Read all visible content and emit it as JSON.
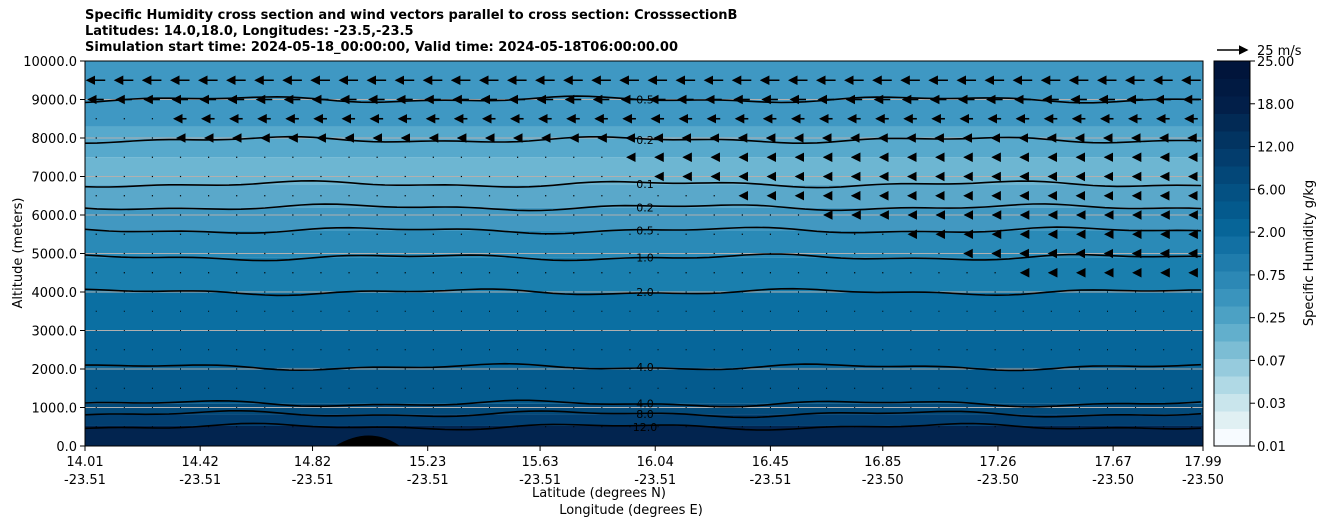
{
  "title": {
    "line1": "Specific Humidity cross section and wind vectors parallel to cross section: CrosssectionB",
    "line2": "Latitudes: 14.0,18.0, Longitudes: -23.5,-23.5",
    "line3": "Simulation start time: 2024-05-18_00:00:00, Valid time: 2024-05-18T06:00:00.00"
  },
  "chart_data": {
    "type": "heatmap",
    "ylabel": "Altitude (meters)",
    "xlabel_lat": "Latitude (degrees N)",
    "xlabel_lon": "Longitude (degrees E)",
    "ylim": [
      0,
      10000
    ],
    "yticks": [
      "0.0",
      "1000.0",
      "2000.0",
      "3000.0",
      "4000.0",
      "5000.0",
      "6000.0",
      "7000.0",
      "8000.0",
      "9000.0",
      "10000.0"
    ],
    "xlim_lat": [
      14.01,
      17.99
    ],
    "xticks_lat": [
      "14.01",
      "14.42",
      "14.82",
      "15.23",
      "15.63",
      "16.04",
      "16.45",
      "16.85",
      "17.26",
      "17.67",
      "17.99"
    ],
    "xticks_lat_values": [
      14.01,
      14.42,
      14.82,
      15.23,
      15.63,
      16.04,
      16.45,
      16.85,
      17.26,
      17.67,
      17.99
    ],
    "xticks_lon": [
      "-23.51",
      "-23.51",
      "-23.51",
      "-23.51",
      "-23.51",
      "-23.51",
      "-23.51",
      "-23.50",
      "-23.50",
      "-23.50",
      "-23.50"
    ],
    "grid": "horizontal",
    "colorbar": {
      "label": "Specific Humidity g/kg",
      "levels": [
        "0.01",
        "0.03",
        "0.07",
        "0.25",
        "0.75",
        "2.00",
        "6.00",
        "12.00",
        "18.00",
        "25.00"
      ],
      "colors": [
        "#f7fbff",
        "#e0f0f3",
        "#c9e5ec",
        "#b0d9e5",
        "#96cbdd",
        "#7cbdd4",
        "#62afcc",
        "#4ca1c4",
        "#3a94bd",
        "#2c88b5",
        "#1f7cac",
        "#1270a3",
        "#076598",
        "#045a8d",
        "#045183",
        "#034778",
        "#033d6d",
        "#023461",
        "#022a55",
        "#021f49",
        "#011a42",
        "#01153b"
      ]
    },
    "wind_key": {
      "label": "25 m/s",
      "speed": 25
    },
    "contours": [
      {
        "label": "12.0",
        "altitude": 500
      },
      {
        "label": "8.0",
        "altitude": 830
      },
      {
        "label": "4.0",
        "altitude": 1100
      },
      {
        "label": "4.0",
        "altitude": 2050
      },
      {
        "label": "2.0",
        "altitude": 4000
      },
      {
        "label": "1.0",
        "altitude": 4900
      },
      {
        "label": "0.5",
        "altitude": 5600
      },
      {
        "label": "0.2",
        "altitude": 6200
      },
      {
        "label": "0.1",
        "altitude": 6800
      },
      {
        "label": "0.2",
        "altitude": 7950
      },
      {
        "label": "0.5",
        "altitude": 9000
      }
    ],
    "wind_levels": [
      {
        "altitude": 9500,
        "speed": 12,
        "from_lat": 14.05
      },
      {
        "altitude": 9000,
        "speed": 10,
        "from_lat": 14.05
      },
      {
        "altitude": 8500,
        "speed": 8,
        "from_lat": 14.3
      },
      {
        "altitude": 8000,
        "speed": 4,
        "from_lat": 14.3
      },
      {
        "altitude": 7500,
        "speed": 3,
        "from_lat": 15.9
      },
      {
        "altitude": 7000,
        "speed": 3,
        "from_lat": 16.0
      },
      {
        "altitude": 6500,
        "speed": 3,
        "from_lat": 16.3
      },
      {
        "altitude": 6000,
        "speed": 2.5,
        "from_lat": 16.6
      },
      {
        "altitude": 5500,
        "speed": 2.5,
        "from_lat": 16.9
      },
      {
        "altitude": 5000,
        "speed": 3,
        "from_lat": 17.1
      },
      {
        "altitude": 4500,
        "speed": 2.5,
        "from_lat": 17.3
      }
    ]
  }
}
